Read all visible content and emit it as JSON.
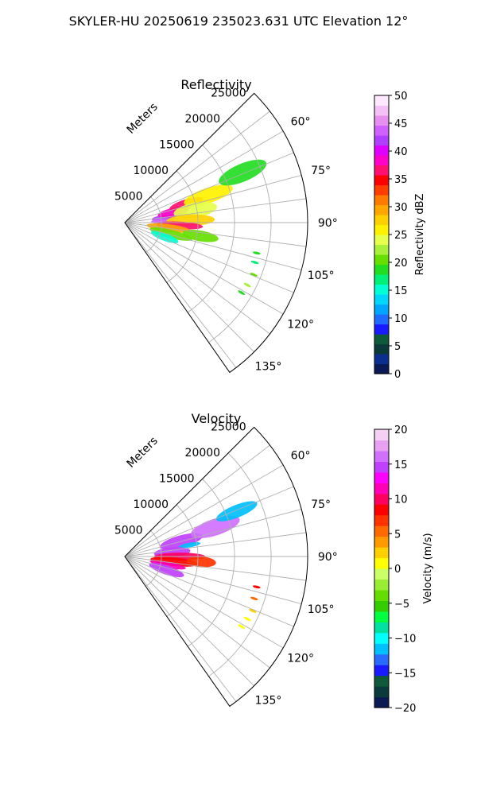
{
  "figure": {
    "suptitle": "SKYLER-HU  20250619  235023.631 UTC Elevation 12°"
  },
  "colors": {
    "grid": "#b0b0b0",
    "frame": "#000000",
    "refl_colormap": [
      "#0b1a55",
      "#0a2f8f",
      "#0a3a3a",
      "#0f5a3a",
      "#1a1aff",
      "#1f6bff",
      "#00a6ff",
      "#00d7ff",
      "#00ffd5",
      "#00f07a",
      "#22dd22",
      "#66e000",
      "#a8f03a",
      "#e6ff4a",
      "#fff200",
      "#ffd000",
      "#ffa600",
      "#ff7a00",
      "#ff3d00",
      "#ff0000",
      "#ff1070",
      "#ff00c8",
      "#e000ff",
      "#b040ff",
      "#d060ff",
      "#e890f0",
      "#f5c0f5",
      "#fde8fd"
    ],
    "vel_colormap": [
      "#0b1a55",
      "#0a3a3a",
      "#0f5a3a",
      "#1a1aff",
      "#2a6bff",
      "#00bfff",
      "#00ffff",
      "#00e0a0",
      "#00ff40",
      "#33cc00",
      "#66dd00",
      "#99ee33",
      "#ccff66",
      "#ffff00",
      "#ffd000",
      "#ff9900",
      "#ff6a00",
      "#ff3300",
      "#ff0000",
      "#ff0060",
      "#ff00b4",
      "#ff00ff",
      "#c040ff",
      "#d070ff",
      "#e8a0f0",
      "#f5d0f5"
    ]
  },
  "chart_data": [
    {
      "type": "heatmap",
      "subtype": "polar radar sector (PPI)",
      "title": "Reflectivity",
      "r_label": "Meters",
      "r_ticks": [
        5000,
        10000,
        15000,
        20000,
        25000
      ],
      "r_tick_labels": [
        "5000",
        "10000",
        "15000",
        "20000",
        "25000"
      ],
      "r_range": [
        0,
        25000
      ],
      "azimuth_range_deg": [
        45,
        145
      ],
      "theta_ticks_deg": [
        60,
        75,
        90,
        105,
        120,
        135
      ],
      "theta_tick_labels": [
        "60°",
        "75°",
        "90°",
        "105°",
        "120°",
        "135°"
      ],
      "grid": true,
      "colorbar": {
        "label": "Reflectivity dBZ",
        "range": [
          0,
          50
        ],
        "ticks": [
          "0",
          "5",
          "10",
          "15",
          "20",
          "25",
          "30",
          "35",
          "40",
          "45",
          "50"
        ]
      },
      "echo_cells": [
        {
          "az": 83,
          "r": 5500,
          "level": 42,
          "ar": 4,
          "rr": 1800
        },
        {
          "az": 88,
          "r": 5200,
          "level": 44,
          "ar": 4,
          "rr": 1600
        },
        {
          "az": 78,
          "r": 6800,
          "level": 38,
          "ar": 5,
          "rr": 2200
        },
        {
          "az": 73,
          "r": 8800,
          "level": 37,
          "ar": 4,
          "rr": 2400
        },
        {
          "az": 72,
          "r": 12000,
          "level": 26,
          "ar": 5,
          "rr": 3500
        },
        {
          "az": 80,
          "r": 9800,
          "level": 24,
          "ar": 6,
          "rr": 3000
        },
        {
          "az": 88,
          "r": 9000,
          "level": 28,
          "ar": 5,
          "rr": 3300
        },
        {
          "az": 93,
          "r": 7500,
          "level": 36,
          "ar": 4,
          "rr": 3200
        },
        {
          "az": 97,
          "r": 6000,
          "level": 30,
          "ar": 5,
          "rr": 3000
        },
        {
          "az": 104,
          "r": 6500,
          "level": 21,
          "ar": 5,
          "rr": 3000
        },
        {
          "az": 110,
          "r": 5800,
          "level": 16,
          "ar": 5,
          "rr": 2000
        },
        {
          "az": 67,
          "r": 17500,
          "level": 19,
          "ar": 4,
          "rr": 3500
        },
        {
          "az": 100,
          "r": 10500,
          "level": 20,
          "ar": 4,
          "rr": 2500
        }
      ],
      "echo_streaks": [
        {
          "az": 103,
          "r": 18500,
          "level": 19
        },
        {
          "az": 107,
          "r": 18600,
          "level": 17
        },
        {
          "az": 112,
          "r": 19000,
          "level": 21
        },
        {
          "az": 117,
          "r": 18800,
          "level": 22
        },
        {
          "az": 121,
          "r": 18600,
          "level": 18
        }
      ]
    },
    {
      "type": "heatmap",
      "subtype": "polar radar sector (PPI)",
      "title": "Velocity",
      "r_label": "Meters",
      "r_ticks": [
        5000,
        10000,
        15000,
        20000,
        25000
      ],
      "r_tick_labels": [
        "5000",
        "10000",
        "15000",
        "20000",
        "25000"
      ],
      "r_range": [
        0,
        25000
      ],
      "azimuth_range_deg": [
        45,
        145
      ],
      "theta_ticks_deg": [
        60,
        75,
        90,
        105,
        120,
        135
      ],
      "theta_tick_labels": [
        "60°",
        "75°",
        "90°",
        "105°",
        "120°",
        "135°"
      ],
      "grid": true,
      "colorbar": {
        "label": "Velocity (m/s)",
        "range": [
          -20,
          20
        ],
        "ticks": [
          "−20",
          "−15",
          "−10",
          "−5",
          "0",
          "5",
          "10",
          "15",
          "20"
        ]
      },
      "echo_cells": [
        {
          "az": 75,
          "r": 8000,
          "level": 15,
          "ar": 6,
          "rr": 3000
        },
        {
          "az": 72,
          "r": 13000,
          "level": 16,
          "ar": 5,
          "rr": 3500
        },
        {
          "az": 80,
          "r": 9000,
          "level": -11,
          "ar": 2,
          "rr": 1500
        },
        {
          "az": 85,
          "r": 6500,
          "level": 14,
          "ar": 6,
          "rr": 2500
        },
        {
          "az": 90,
          "r": 7500,
          "level": 10,
          "ar": 4,
          "rr": 3500
        },
        {
          "az": 96,
          "r": 6800,
          "level": 9,
          "ar": 5,
          "rr": 3300
        },
        {
          "az": 101,
          "r": 6000,
          "level": 11,
          "ar": 4,
          "rr": 2500
        },
        {
          "az": 108,
          "r": 6000,
          "level": 15,
          "ar": 6,
          "rr": 2500
        },
        {
          "az": 68,
          "r": 16500,
          "level": -12,
          "ar": 3,
          "rr": 3000
        },
        {
          "az": 94,
          "r": 10500,
          "level": 7,
          "ar": 4,
          "rr": 2000
        }
      ],
      "echo_streaks": [
        {
          "az": 103,
          "r": 18500,
          "level": 8
        },
        {
          "az": 108,
          "r": 18600,
          "level": 6
        },
        {
          "az": 113,
          "r": 19000,
          "level": 3
        },
        {
          "az": 117,
          "r": 18800,
          "level": 1
        },
        {
          "az": 121,
          "r": 18600,
          "level": 0
        }
      ]
    }
  ]
}
